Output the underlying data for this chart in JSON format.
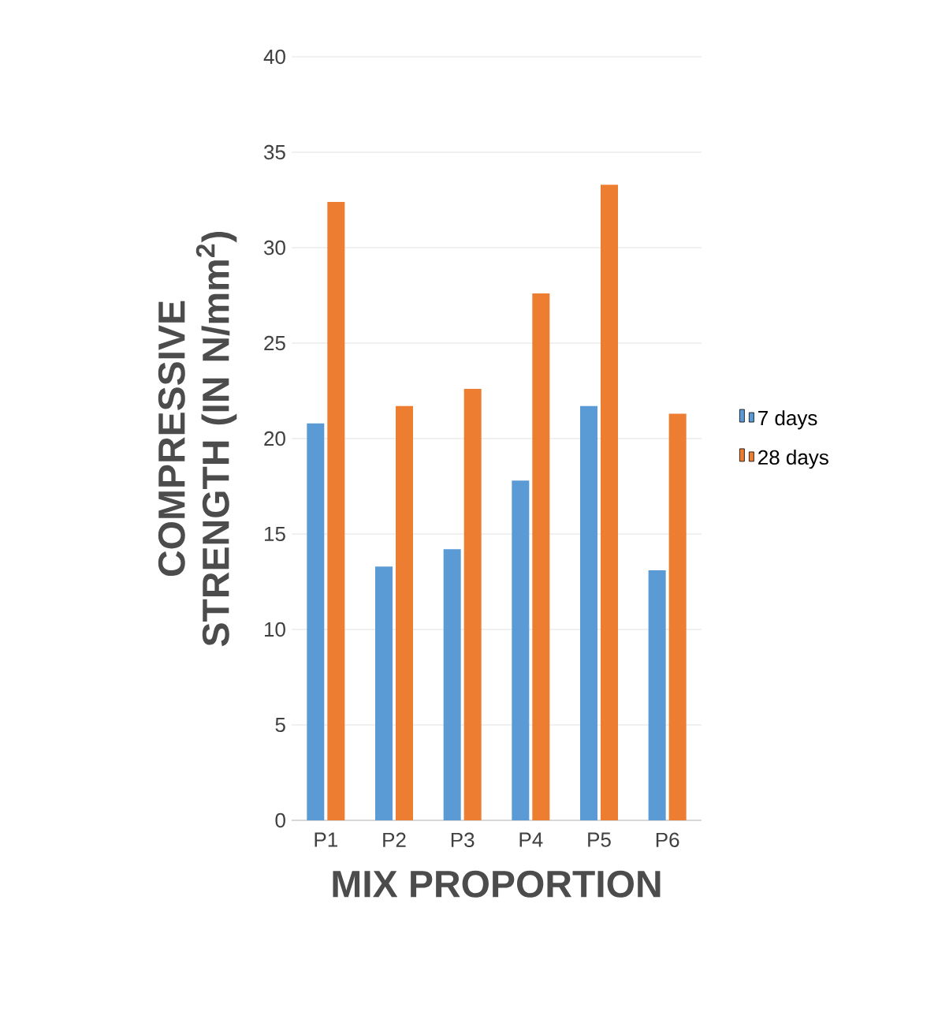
{
  "chart_data": {
    "type": "bar",
    "xlabel": "MIX PROPORTION",
    "ylabel": "COMPRESSIVE STRENGTH (IN N/mm$^{2}$)",
    "categories": [
      "P1",
      "P2",
      "P3",
      "P4",
      "P5",
      "P6"
    ],
    "series": [
      {
        "name": "7 days",
        "color": "#5b9bd5",
        "values": [
          20.8,
          13.3,
          14.2,
          17.8,
          21.7,
          13.1
        ]
      },
      {
        "name": "28 days",
        "color": "#ed7d31",
        "values": [
          32.4,
          21.7,
          22.6,
          27.6,
          33.3,
          21.3
        ]
      }
    ],
    "ylim": [
      0,
      40
    ],
    "yticks": [
      0,
      5,
      10,
      15,
      20,
      25,
      30,
      35,
      40
    ],
    "grid": "y",
    "legend": "right"
  }
}
